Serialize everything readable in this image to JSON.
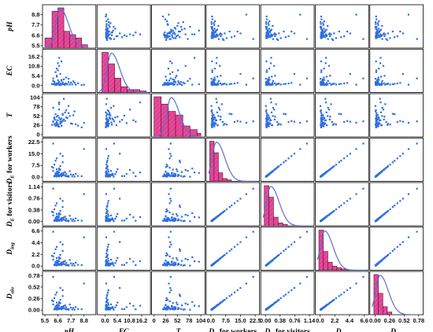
{
  "chart_data": {
    "type": "scatter",
    "layout": "pairwise scatter-plot matrix with histograms and density curves on the diagonal",
    "variables": [
      {
        "label": "pH",
        "sub": "",
        "range": [
          5.5,
          9.6
        ],
        "ticks": [
          "5.5",
          "6.6",
          "7.7",
          "8.8"
        ],
        "ticks_show_y": [
          "5.5",
          "6.6",
          "7.7",
          "8.8"
        ]
      },
      {
        "label": "EC",
        "sub": "",
        "range": [
          -2.5,
          19
        ],
        "ticks": [
          "0.0",
          "5.4",
          "10.8",
          "16.2"
        ],
        "ticks_show_y": [
          "0.0",
          "5.4",
          "10.8",
          "16.2"
        ]
      },
      {
        "label": "T",
        "sub": "",
        "range": [
          0,
          108
        ],
        "ticks": [
          "26",
          "52",
          "78",
          "104"
        ],
        "ticks_show_y": [
          "0",
          "26",
          "52",
          "78",
          "104"
        ]
      },
      {
        "label": "D",
        "sub": "E",
        "suffix": " for workers",
        "range": [
          -1.2,
          23.5
        ],
        "ticks": [
          "0.0",
          "7.5",
          "15.0",
          "22.5"
        ],
        "ticks_show_y": [
          "0.0",
          "7.5",
          "15.0",
          "22.5"
        ]
      },
      {
        "label": "D",
        "sub": "E",
        "suffix": " for visitors",
        "range": [
          -0.06,
          1.2
        ],
        "ticks": [
          "0.00",
          "0.38",
          "0.76",
          "1.14"
        ],
        "ticks_show_y": [
          "0.00",
          "0.38",
          "0.76",
          "1.14"
        ]
      },
      {
        "label": "D",
        "sub": "ing",
        "suffix": "",
        "range": [
          -0.35,
          6.9
        ],
        "ticks": [
          "0.0",
          "2.2",
          "4.4",
          "6.6"
        ],
        "ticks_show_y": [
          "0.0",
          "2.2",
          "4.4",
          "6.6"
        ]
      },
      {
        "label": "D",
        "sub": "alo",
        "suffix": "",
        "range": [
          -0.05,
          0.82
        ],
        "ticks": [
          "0.00",
          "0.26",
          "0.52",
          "0.78"
        ],
        "ticks_show_y": [
          "0.00",
          "0.26",
          "0.52",
          "0.78"
        ]
      }
    ],
    "grid": false,
    "legend": "none",
    "colors": {
      "points": "#2f6fe0",
      "bars": "#e8499a",
      "bar_hatch": "#7a1c4a",
      "density": "#5b6fd6",
      "frame": "#000000"
    },
    "histograms": [
      {
        "bins": [
          5.5,
          6.1,
          6.6,
          7.1,
          7.6,
          8.1,
          8.6,
          9.1
        ],
        "heights": [
          3,
          11,
          12,
          5,
          4,
          3,
          1
        ],
        "density_peak_x": 6.8
      },
      {
        "bins": [
          -1.4,
          1.4,
          4.2,
          7.0,
          9.8,
          12.6,
          15.4,
          18.2
        ],
        "heights": [
          14,
          10,
          5,
          2,
          1,
          1,
          0.5
        ],
        "density_peak_x": 2.8
      },
      {
        "bins": [
          0,
          16,
          32,
          48,
          64,
          80,
          96,
          104
        ],
        "heights": [
          11,
          9,
          7,
          6,
          3,
          2,
          1
        ],
        "density_peak_x": 38
      },
      {
        "bins": [
          -0.6,
          1.6,
          3.8,
          6.0,
          8.2,
          10.4
        ],
        "heights": [
          14,
          10,
          3,
          1,
          0.5
        ],
        "density_peak_x": 2.8
      },
      {
        "bins": [
          -0.03,
          0.09,
          0.21,
          0.33,
          0.45,
          0.57
        ],
        "heights": [
          14,
          10,
          3,
          1,
          0.5
        ],
        "density_peak_x": 0.14
      },
      {
        "bins": [
          -0.17,
          0.5,
          1.17,
          1.84,
          2.51,
          3.18,
          3.85
        ],
        "heights": [
          15,
          7,
          3,
          1.5,
          1,
          0.5
        ],
        "density_peak_x": 0.7
      },
      {
        "bins": [
          -0.02,
          0.06,
          0.14,
          0.22,
          0.3
        ],
        "heights": [
          15,
          8,
          3,
          1
        ],
        "density_peak_x": 0.09
      }
    ],
    "observations": [
      {
        "pH": 6.4,
        "EC": 0.8,
        "T": 30,
        "DEw": 1.2,
        "DEv": 0.06,
        "Ding": 0.35,
        "Dalo": 0.04
      },
      {
        "pH": 6.6,
        "EC": 1.5,
        "T": 26,
        "DEw": 3.5,
        "DEv": 0.18,
        "Ding": 1.0,
        "Dalo": 0.12
      },
      {
        "pH": 6.7,
        "EC": 0.4,
        "T": 22,
        "DEw": 0.5,
        "DEv": 0.025,
        "Ding": 0.15,
        "Dalo": 0.02
      },
      {
        "pH": 6.9,
        "EC": 3.2,
        "T": 45,
        "DEw": 2.2,
        "DEv": 0.11,
        "Ding": 0.65,
        "Dalo": 0.07
      },
      {
        "pH": 7.2,
        "EC": 1.1,
        "T": 38,
        "DEw": 0.9,
        "DEv": 0.045,
        "Ding": 0.27,
        "Dalo": 0.03
      },
      {
        "pH": 6.5,
        "EC": 5.5,
        "T": 50,
        "DEw": 5.0,
        "DEv": 0.25,
        "Ding": 1.5,
        "Dalo": 0.17
      },
      {
        "pH": 6.8,
        "EC": 0.9,
        "T": 33,
        "DEw": 1.6,
        "DEv": 0.08,
        "Ding": 0.47,
        "Dalo": 0.05
      },
      {
        "pH": 7.5,
        "EC": 2.0,
        "T": 60,
        "DEw": 0.7,
        "DEv": 0.035,
        "Ding": 0.2,
        "Dalo": 0.025
      },
      {
        "pH": 6.3,
        "EC": 0.6,
        "T": 28,
        "DEw": 8.0,
        "DEv": 0.4,
        "Ding": 2.4,
        "Dalo": 0.27
      },
      {
        "pH": 6.6,
        "EC": 12.5,
        "T": 40,
        "DEw": 2.8,
        "DEv": 0.14,
        "Ding": 0.85,
        "Dalo": 0.095
      },
      {
        "pH": 7.0,
        "EC": 1.8,
        "T": 55,
        "DEw": 1.1,
        "DEv": 0.055,
        "Ding": 0.33,
        "Dalo": 0.037
      },
      {
        "pH": 7.8,
        "EC": 0.7,
        "T": 30,
        "DEw": 0.4,
        "DEv": 0.02,
        "Ding": 0.12,
        "Dalo": 0.013
      },
      {
        "pH": 6.2,
        "EC": 2.6,
        "T": 75,
        "DEw": 4.0,
        "DEv": 0.2,
        "Ding": 1.2,
        "Dalo": 0.13
      },
      {
        "pH": 6.9,
        "EC": 0.5,
        "T": 24,
        "DEw": 0.8,
        "DEv": 0.04,
        "Ding": 0.24,
        "Dalo": 0.027
      },
      {
        "pH": 7.3,
        "EC": 4.5,
        "T": 48,
        "DEw": 1.9,
        "DEv": 0.095,
        "Ding": 0.57,
        "Dalo": 0.063
      },
      {
        "pH": 6.5,
        "EC": 1.2,
        "T": 35,
        "DEw": 12.0,
        "DEv": 0.6,
        "Ding": 3.6,
        "Dalo": 0.4
      },
      {
        "pH": 6.7,
        "EC": 15.5,
        "T": 90,
        "DEw": 3.0,
        "DEv": 0.15,
        "Ding": 0.9,
        "Dalo": 0.1
      },
      {
        "pH": 8.6,
        "EC": 0.3,
        "T": 20,
        "DEw": 0.6,
        "DEv": 0.03,
        "Ding": 0.18,
        "Dalo": 0.02
      },
      {
        "pH": 6.1,
        "EC": 0.9,
        "T": 27,
        "DEw": 6.5,
        "DEv": 0.325,
        "Ding": 1.95,
        "Dalo": 0.22
      },
      {
        "pH": 7.1,
        "EC": 3.5,
        "T": 42,
        "DEw": 1.4,
        "DEv": 0.07,
        "Ding": 0.42,
        "Dalo": 0.047
      },
      {
        "pH": 6.4,
        "EC": 0.4,
        "T": 31,
        "DEw": 2.5,
        "DEv": 0.125,
        "Ding": 0.75,
        "Dalo": 0.083
      },
      {
        "pH": 8.0,
        "EC": 1.6,
        "T": 65,
        "DEw": 0.3,
        "DEv": 0.015,
        "Ding": 0.09,
        "Dalo": 0.01
      },
      {
        "pH": 6.8,
        "EC": 6.5,
        "T": 36,
        "DEw": 15.0,
        "DEv": 0.75,
        "Ding": 4.5,
        "Dalo": 0.5
      },
      {
        "pH": 6.6,
        "EC": 1.0,
        "T": 29,
        "DEw": 1.0,
        "DEv": 0.05,
        "Ding": 0.3,
        "Dalo": 0.033
      },
      {
        "pH": 7.6,
        "EC": 0.6,
        "T": 52,
        "DEw": 3.8,
        "DEv": 0.19,
        "Ding": 1.14,
        "Dalo": 0.127
      },
      {
        "pH": 6.3,
        "EC": 2.2,
        "T": 44,
        "DEw": 0.45,
        "DEv": 0.0225,
        "Ding": 0.135,
        "Dalo": 0.015
      },
      {
        "pH": 7.0,
        "EC": 0.8,
        "T": 58,
        "DEw": 9.5,
        "DEv": 0.475,
        "Ding": 2.85,
        "Dalo": 0.317
      },
      {
        "pH": 6.5,
        "EC": 9.5,
        "T": 32,
        "DEw": 2.0,
        "DEv": 0.1,
        "Ding": 0.6,
        "Dalo": 0.067
      },
      {
        "pH": 8.3,
        "EC": 1.3,
        "T": 25,
        "DEw": 0.75,
        "DEv": 0.0375,
        "Ding": 0.225,
        "Dalo": 0.025
      },
      {
        "pH": 6.7,
        "EC": 0.5,
        "T": 85,
        "DEw": 5.5,
        "DEv": 0.275,
        "Ding": 1.65,
        "Dalo": 0.183
      },
      {
        "pH": 6.9,
        "EC": 2.8,
        "T": 34,
        "DEw": 1.3,
        "DEv": 0.065,
        "Ding": 0.39,
        "Dalo": 0.043
      },
      {
        "pH": 7.4,
        "EC": 0.7,
        "T": 46,
        "DEw": 0.55,
        "DEv": 0.0275,
        "Ding": 0.165,
        "Dalo": 0.018
      },
      {
        "pH": 6.2,
        "EC": 4.0,
        "T": 37,
        "DEw": 21.5,
        "DEv": 1.075,
        "Ding": 6.45,
        "Dalo": 0.75
      },
      {
        "pH": 6.6,
        "EC": 1.4,
        "T": 23,
        "DEw": 1.8,
        "DEv": 0.09,
        "Ding": 0.54,
        "Dalo": 0.06
      },
      {
        "pH": 7.2,
        "EC": 0.35,
        "T": 62,
        "DEw": 3.2,
        "DEv": 0.16,
        "Ding": 0.96,
        "Dalo": 0.107
      },
      {
        "pH": 6.4,
        "EC": 7.5,
        "T": 41,
        "DEw": 0.65,
        "DEv": 0.0325,
        "Ding": 0.195,
        "Dalo": 0.022
      },
      {
        "pH": 6.8,
        "EC": 1.1,
        "T": 30,
        "DEw": 7.0,
        "DEv": 0.35,
        "Ding": 2.1,
        "Dalo": 0.233
      },
      {
        "pH": 7.9,
        "EC": 2.4,
        "T": 54,
        "DEw": 1.5,
        "DEv": 0.075,
        "Ding": 0.45,
        "Dalo": 0.05
      },
      {
        "pH": 6.5,
        "EC": 0.6,
        "T": 27,
        "DEw": 0.35,
        "DEv": 0.0175,
        "Ding": 0.105,
        "Dalo": 0.012
      },
      {
        "pH": 6.7,
        "EC": 11.0,
        "T": 70,
        "DEw": 4.5,
        "DEv": 0.225,
        "Ding": 1.35,
        "Dalo": 0.15
      },
      {
        "pH": 7.0,
        "EC": 0.9,
        "T": 39,
        "DEw": 2.4,
        "DEv": 0.12,
        "Ding": 0.72,
        "Dalo": 0.08
      },
      {
        "pH": 6.3,
        "EC": 1.9,
        "T": 48,
        "DEw": 0.85,
        "DEv": 0.0425,
        "Ding": 0.255,
        "Dalo": 0.028
      },
      {
        "pH": 8.8,
        "EC": 0.5,
        "T": 33,
        "DEw": 18.0,
        "DEv": 0.9,
        "Ding": 5.4,
        "Dalo": 0.6
      },
      {
        "pH": 6.6,
        "EC": 3.0,
        "T": 28,
        "DEw": 1.25,
        "DEv": 0.0625,
        "Ding": 0.375,
        "Dalo": 0.042
      },
      {
        "pH": 7.1,
        "EC": 0.75,
        "T": 100,
        "DEw": 2.7,
        "DEv": 0.135,
        "Ding": 0.81,
        "Dalo": 0.09
      },
      {
        "pH": 6.9,
        "EC": 13.5,
        "T": 36,
        "DEw": 0.55,
        "DEv": 0.0275,
        "Ding": 0.165,
        "Dalo": 0.018
      },
      {
        "pH": 6.4,
        "EC": 1.0,
        "T": 57,
        "DEw": 10.5,
        "DEv": 0.525,
        "Ding": 3.15,
        "Dalo": 0.35
      },
      {
        "pH": 7.7,
        "EC": 1.7,
        "T": 31,
        "DEw": 1.7,
        "DEv": 0.085,
        "Ding": 0.51,
        "Dalo": 0.057
      },
      {
        "pH": 6.8,
        "EC": 0.45,
        "T": 43,
        "DEw": 0.95,
        "DEv": 0.0475,
        "Ding": 0.285,
        "Dalo": 0.032
      },
      {
        "pH": 6.5,
        "EC": 5.0,
        "T": 26,
        "DEw": 3.3,
        "DEv": 0.165,
        "Ding": 0.99,
        "Dalo": 0.11
      },
      {
        "pH": 7.3,
        "EC": 1.2,
        "T": 68,
        "DEw": 0.5,
        "DEv": 0.025,
        "Ding": 0.15,
        "Dalo": 0.017
      },
      {
        "pH": 6.2,
        "EC": 0.8,
        "T": 35,
        "DEw": 6.0,
        "DEv": 0.3,
        "Ding": 1.8,
        "Dalo": 0.2
      },
      {
        "pH": 6.7,
        "EC": 2.1,
        "T": 47,
        "DEw": 1.05,
        "DEv": 0.0525,
        "Ding": 0.315,
        "Dalo": 0.035
      },
      {
        "pH": 8.1,
        "EC": 0.55,
        "T": 29,
        "DEw": 2.1,
        "DEv": 0.105,
        "Ding": 0.63,
        "Dalo": 0.07
      },
      {
        "pH": 6.6,
        "EC": 8.5,
        "T": 53,
        "DEw": 0.7,
        "DEv": 0.035,
        "Ding": 0.21,
        "Dalo": 0.023
      },
      {
        "pH": 7.0,
        "EC": 1.5,
        "T": 38,
        "DEw": 13.5,
        "DEv": 0.675,
        "Ding": 4.05,
        "Dalo": 0.45
      },
      {
        "pH": 6.4,
        "EC": 0.65,
        "T": 24,
        "DEw": 1.45,
        "DEv": 0.0725,
        "Ding": 0.435,
        "Dalo": 0.048
      },
      {
        "pH": 7.5,
        "EC": 3.8,
        "T": 80,
        "DEw": 0.25,
        "DEv": 0.0125,
        "Ding": 0.075,
        "Dalo": 0.008
      },
      {
        "pH": 6.8,
        "EC": 1.3,
        "T": 42,
        "DEw": 4.8,
        "DEv": 0.24,
        "Ding": 1.44,
        "Dalo": 0.16
      },
      {
        "pH": 6.5,
        "EC": 0.4,
        "T": 32,
        "DEw": 1.15,
        "DEv": 0.0575,
        "Ding": 0.345,
        "Dalo": 0.038
      }
    ]
  }
}
